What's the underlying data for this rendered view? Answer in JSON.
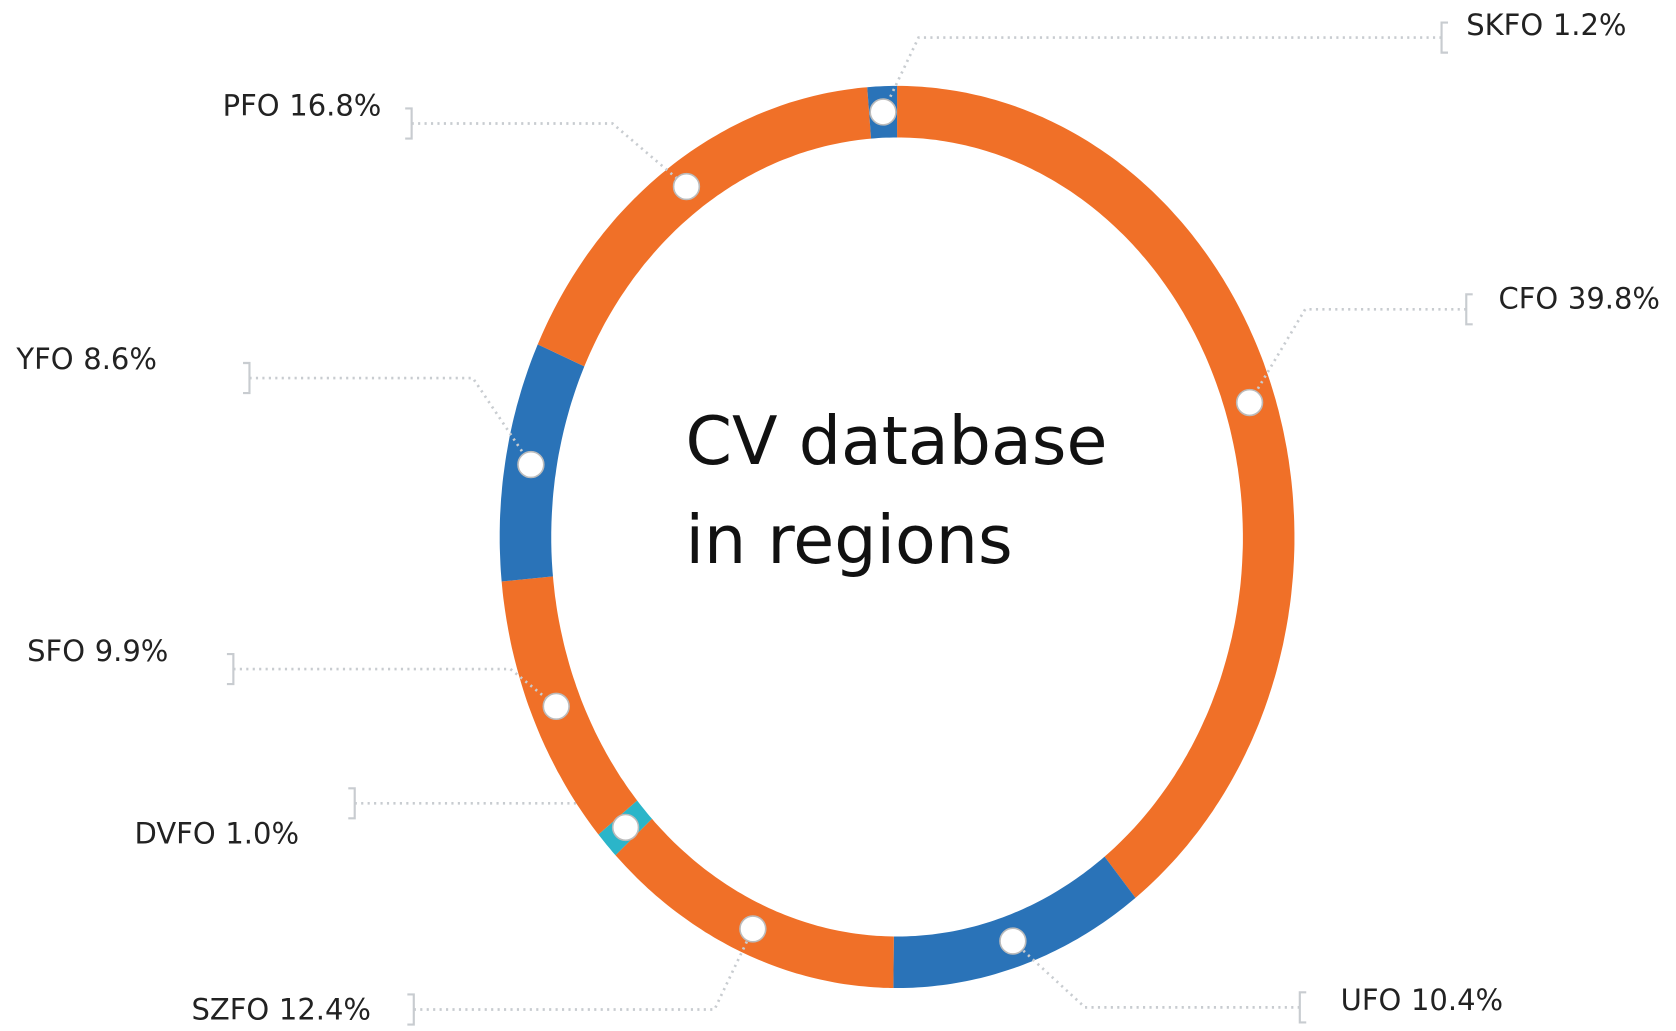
{
  "chart_data": {
    "type": "donut",
    "title": "CV database in regions",
    "categories": [
      "CFO",
      "UFO",
      "SZFO",
      "DVFO",
      "SFO",
      "YFO",
      "PFO",
      "SKFO"
    ],
    "values": [
      39.8,
      10.4,
      12.4,
      1.0,
      9.9,
      8.6,
      16.8,
      1.2
    ],
    "value_labels": [
      "39.8%",
      "10.4%",
      "12.4%",
      "1.0%",
      "9.9%",
      "8.6%",
      "16.8%",
      "1.2%"
    ],
    "colors": [
      "#f07028",
      "#2a73b8",
      "#f07028",
      "#2bb5c9",
      "#f07028",
      "#2a73b8",
      "#f07028",
      "#2a73b8"
    ]
  }
}
